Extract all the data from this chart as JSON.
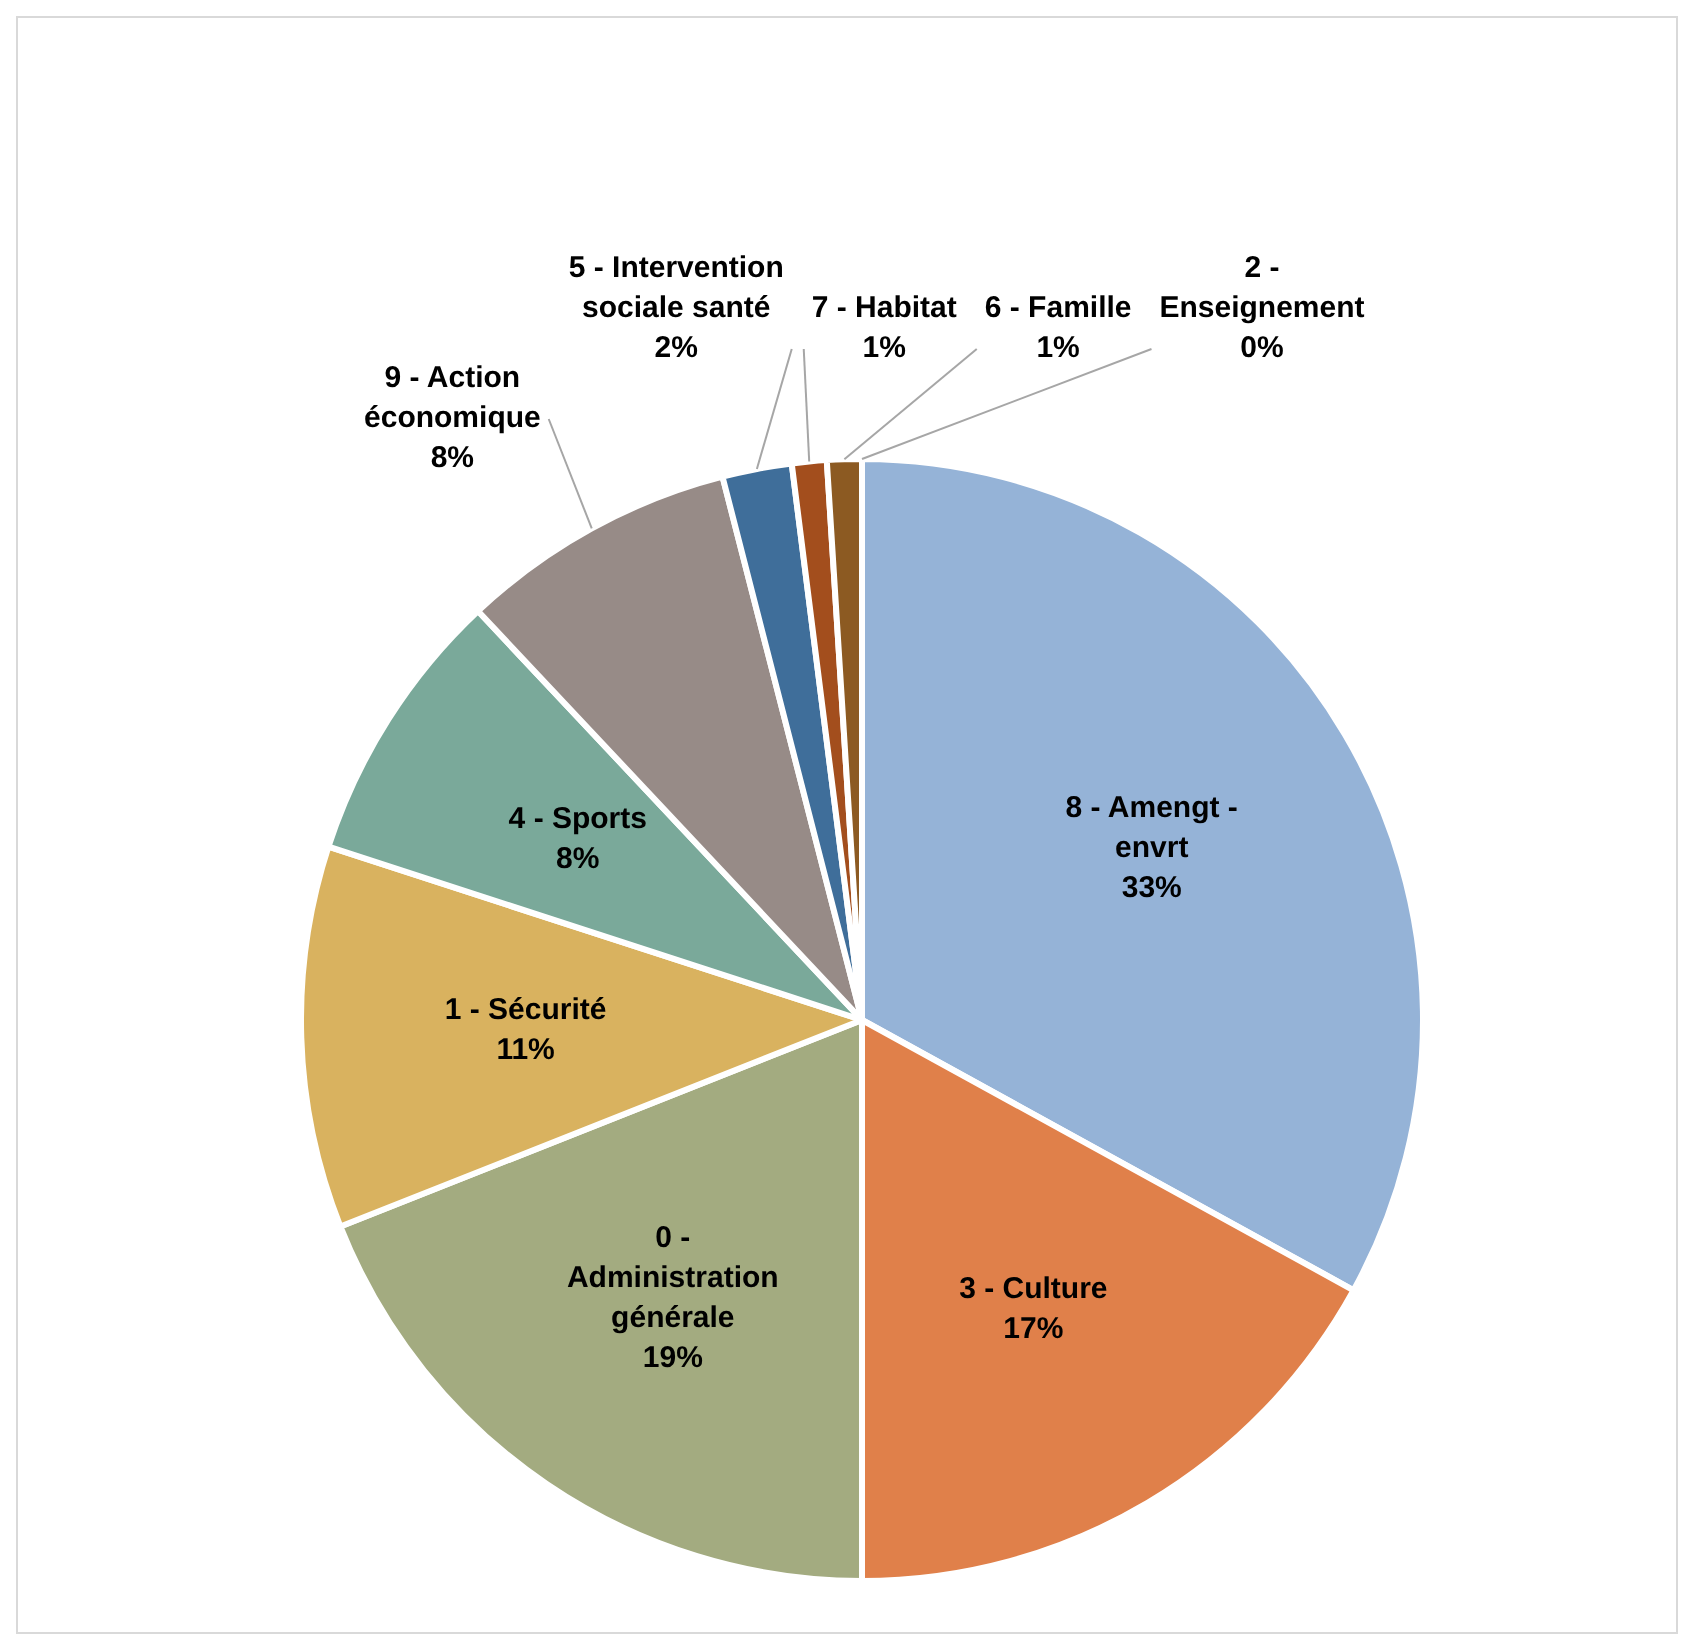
{
  "chart_data": {
    "type": "pie",
    "categories": [
      "8 - Amengt - envrt",
      "3 - Culture",
      "0 - Administration générale",
      "1 - Sécurité",
      "4 - Sports",
      "9 - Action économique",
      "5 - Intervention sociale santé",
      "7 - Habitat",
      "6 - Famille",
      "2 - Enseignement"
    ],
    "values": [
      33,
      17,
      19,
      11,
      8,
      8,
      2,
      1,
      1,
      0
    ],
    "value_labels": [
      "33%",
      "17%",
      "19%",
      "11%",
      "8%",
      "8%",
      "2%",
      "1%",
      "1%",
      "0%"
    ],
    "colors": [
      "#95b3d7",
      "#e0804a",
      "#a3ab80",
      "#d9b25f",
      "#7aa99a",
      "#978b87",
      "#3f6e9a",
      "#a34e1d",
      "#8c5a22",
      "#6b7a4a"
    ]
  }
}
